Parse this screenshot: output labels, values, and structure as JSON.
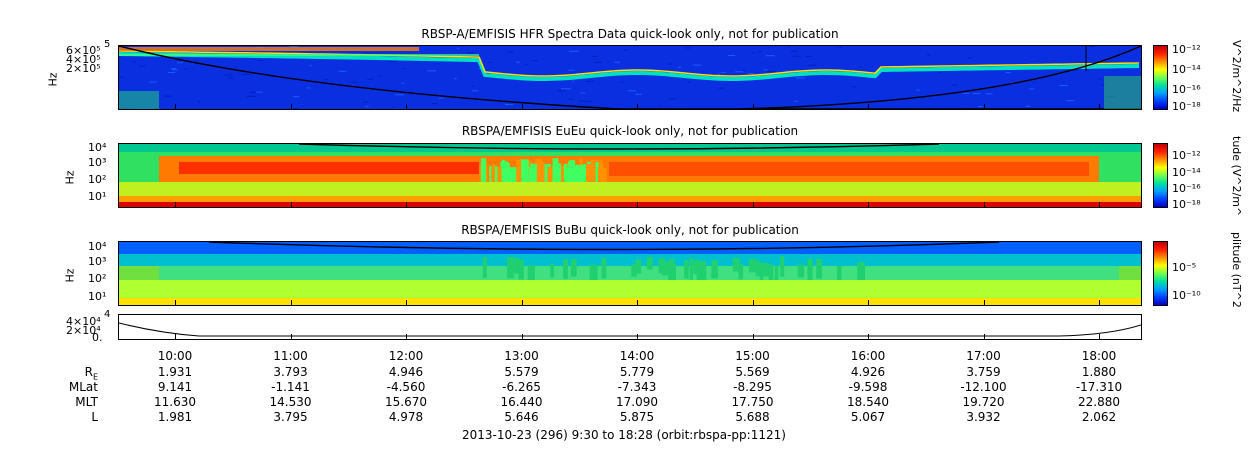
{
  "chart_data": [
    {
      "type": "heatmap",
      "title": "RBSP-A/EMFISIS  HFR Spectra Data quick-look only, not for publication",
      "ylabel": "Hz",
      "yticks": [
        "6×10⁵",
        "4×10⁵",
        "2×10⁵"
      ],
      "ytick_top": "5",
      "colorbar_label": "V^2/m^2/Hz",
      "colorbar_ticks": [
        "10⁻¹²",
        "10⁻¹⁴",
        "10⁻¹⁶",
        "10⁻¹⁸"
      ]
    },
    {
      "type": "heatmap",
      "title": "RBSPA/EMFISIS  EuEu quick-look only, not for publication",
      "ylabel": "Hz",
      "yticks": [
        "10⁴",
        "10³",
        "10²",
        "10¹"
      ],
      "colorbar_label": "tude (V^2/m^",
      "colorbar_ticks": [
        "10⁻¹²",
        "10⁻¹⁴",
        "10⁻¹⁶",
        "10⁻¹⁸"
      ]
    },
    {
      "type": "heatmap",
      "title": "RBSPA/EMFISIS  BuBu quick-look only, not for publication",
      "ylabel": "Hz",
      "yticks": [
        "10⁴",
        "10³",
        "10²",
        "10¹"
      ],
      "colorbar_label": "plitude (nT^2",
      "colorbar_ticks": [
        "10⁻⁵",
        "10⁻¹⁰"
      ]
    },
    {
      "type": "line",
      "title": "",
      "yticks": [
        "4×10⁴",
        "2×10⁴",
        "0."
      ],
      "ytick_top": "4"
    }
  ],
  "time_axis": {
    "times": [
      "10:00",
      "11:00",
      "12:00",
      "13:00",
      "14:00",
      "15:00",
      "16:00",
      "17:00",
      "18:00"
    ],
    "rows": [
      {
        "label": "R",
        "sub": "E",
        "values": [
          "1.931",
          "3.793",
          "4.946",
          "5.579",
          "5.779",
          "5.569",
          "4.926",
          "3.759",
          "1.880"
        ]
      },
      {
        "label": "MLat",
        "values": [
          "9.141",
          "-1.141",
          "-4.560",
          "-6.265",
          "-7.343",
          "-8.295",
          "-9.598",
          "-12.100",
          "-17.310"
        ]
      },
      {
        "label": "MLT",
        "values": [
          "11.630",
          "14.530",
          "15.670",
          "16.440",
          "17.090",
          "17.750",
          "18.540",
          "19.720",
          "22.880"
        ]
      },
      {
        "label": "L",
        "values": [
          "1.981",
          "3.795",
          "4.978",
          "5.646",
          "5.875",
          "5.688",
          "5.067",
          "3.932",
          "2.062"
        ]
      }
    ]
  },
  "footer": "2013-10-23 (296) 9:30 to 18:28 (orbit:rbspa-pp:1121)"
}
